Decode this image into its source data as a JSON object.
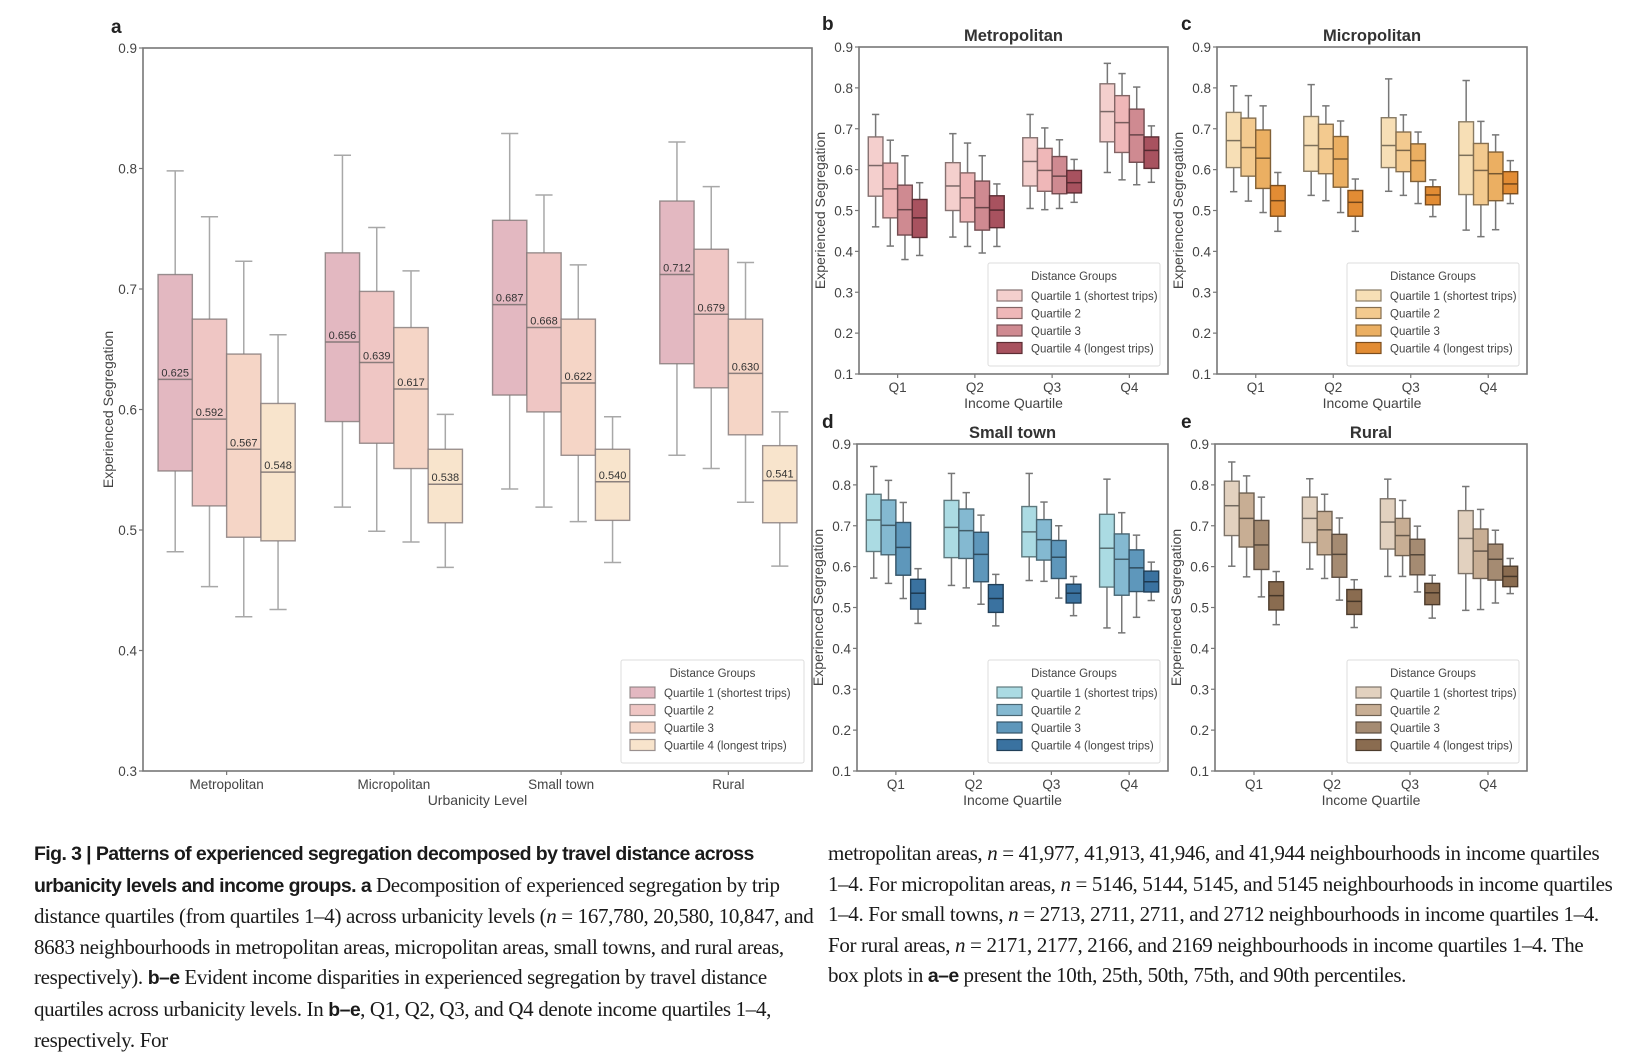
{
  "figure": {
    "label": "Fig. 3",
    "caption_title": "Patterns of experienced segregation decomposed by travel distance across urbanicity levels and income groups.",
    "caption_left_parts": [
      {
        "b": "a"
      },
      {
        "t": " Decomposition of experienced segregation by trip distance quartiles (from quartiles 1–4) across urbanicity levels ("
      },
      {
        "i": "n"
      },
      {
        "t": " = 167,780, 20,580, 10,847, and 8683 neighbourhoods in metropolitan areas, micropolitan areas, small towns, and rural areas, respectively). "
      },
      {
        "b": "b–e"
      },
      {
        "t": " Evident income disparities in experienced segregation by travel distance quartiles across urbanicity levels. In "
      },
      {
        "b": "b–e"
      },
      {
        "t": ", Q1, Q2, Q3, and Q4 denote income quartiles 1–4, respectively. For"
      }
    ],
    "caption_right_parts": [
      {
        "t": "metropolitan areas, "
      },
      {
        "i": "n"
      },
      {
        "t": " = 41,977, 41,913, 41,946, and 41,944 neighbourhoods in income quartiles 1–4. For micropolitan areas, "
      },
      {
        "i": "n"
      },
      {
        "t": " = 5146, 5144, 5145, and 5145 neighbourhoods in income quartiles 1–4. For small towns, "
      },
      {
        "i": "n"
      },
      {
        "t": " = 2713, 2711, 2711, and 2712 neighbourhoods in income quartiles 1–4. For rural areas, "
      },
      {
        "i": "n"
      },
      {
        "t": " = 2171, 2177, 2166, and 2169 neighbourhoods in income quartiles 1–4. The box plots in "
      },
      {
        "b": "a–e"
      },
      {
        "t": " present the 10th, 25th, 50th, 75th, and 90th percentiles."
      }
    ]
  },
  "chart_data": [
    {
      "panel": "a",
      "type": "box",
      "title": "",
      "xlabel": "Urbanicity Level",
      "ylabel": "Experienced Segregation",
      "ylim": [
        0.3,
        0.9
      ],
      "yticks": [
        "0.3",
        "0.4",
        "0.5",
        "0.6",
        "0.7",
        "0.8",
        "0.9"
      ],
      "categories": [
        "Metropolitan",
        "Micropolitan",
        "Small town",
        "Rural"
      ],
      "legend": {
        "title": "Distance Groups",
        "position": "lower-right"
      },
      "show_median_labels": true,
      "series": [
        {
          "name": "Quartile 1 (shortest trips)",
          "color": "#e3b8c1",
          "p10": [
            0.482,
            0.519,
            0.534,
            0.562
          ],
          "p25": [
            0.549,
            0.59,
            0.612,
            0.638
          ],
          "p50": [
            0.625,
            0.656,
            0.687,
            0.712
          ],
          "p75": [
            0.712,
            0.73,
            0.757,
            0.773
          ],
          "p90": [
            0.798,
            0.811,
            0.829,
            0.822
          ]
        },
        {
          "name": "Quartile 2",
          "color": "#efc6c4",
          "p10": [
            0.453,
            0.499,
            0.519,
            0.551
          ],
          "p25": [
            0.52,
            0.572,
            0.598,
            0.618
          ],
          "p50": [
            0.592,
            0.639,
            0.668,
            0.679
          ],
          "p75": [
            0.675,
            0.698,
            0.73,
            0.733
          ],
          "p90": [
            0.76,
            0.751,
            0.778,
            0.785
          ]
        },
        {
          "name": "Quartile 3",
          "color": "#f5d5c6",
          "p10": [
            0.428,
            0.49,
            0.507,
            0.523
          ],
          "p25": [
            0.494,
            0.551,
            0.562,
            0.579
          ],
          "p50": [
            0.567,
            0.617,
            0.622,
            0.63
          ],
          "p75": [
            0.646,
            0.668,
            0.675,
            0.675
          ],
          "p90": [
            0.723,
            0.715,
            0.72,
            0.722
          ]
        },
        {
          "name": "Quartile 4 (longest trips)",
          "color": "#f8e4cc",
          "p10": [
            0.434,
            0.469,
            0.473,
            0.47
          ],
          "p25": [
            0.491,
            0.506,
            0.508,
            0.506
          ],
          "p50": [
            0.548,
            0.538,
            0.54,
            0.541
          ],
          "p75": [
            0.605,
            0.567,
            0.567,
            0.57
          ],
          "p90": [
            0.662,
            0.596,
            0.594,
            0.598
          ]
        }
      ]
    },
    {
      "panel": "b",
      "type": "box",
      "title": "Metropolitan",
      "xlabel": "Income Quartile",
      "ylabel": "Experienced Segregation",
      "ylim": [
        0.1,
        0.9
      ],
      "yticks": [
        "0.1",
        "0.2",
        "0.3",
        "0.4",
        "0.5",
        "0.6",
        "0.7",
        "0.8",
        "0.9"
      ],
      "categories": [
        "Q1",
        "Q2",
        "Q3",
        "Q4"
      ],
      "legend": {
        "title": "Distance Groups",
        "position": "lower-right"
      },
      "series": [
        {
          "name": "Quartile 1 (shortest trips)",
          "color": "#f4cfcd",
          "p10": [
            0.46,
            0.435,
            0.505,
            0.593
          ],
          "p25": [
            0.535,
            0.5,
            0.56,
            0.668
          ],
          "p50": [
            0.61,
            0.56,
            0.62,
            0.742
          ],
          "p75": [
            0.68,
            0.617,
            0.678,
            0.81
          ],
          "p90": [
            0.735,
            0.688,
            0.735,
            0.86
          ]
        },
        {
          "name": "Quartile 2",
          "color": "#efb7b8",
          "p10": [
            0.413,
            0.412,
            0.502,
            0.575
          ],
          "p25": [
            0.482,
            0.472,
            0.547,
            0.642
          ],
          "p50": [
            0.553,
            0.531,
            0.598,
            0.715
          ],
          "p75": [
            0.616,
            0.592,
            0.652,
            0.781
          ],
          "p90": [
            0.672,
            0.665,
            0.702,
            0.835
          ]
        },
        {
          "name": "Quartile 3",
          "color": "#cf8a91",
          "p10": [
            0.38,
            0.396,
            0.505,
            0.563
          ],
          "p25": [
            0.44,
            0.452,
            0.541,
            0.618
          ],
          "p50": [
            0.502,
            0.507,
            0.584,
            0.685
          ],
          "p75": [
            0.562,
            0.572,
            0.632,
            0.748
          ],
          "p90": [
            0.634,
            0.634,
            0.673,
            0.802
          ]
        },
        {
          "name": "Quartile 4 (longest trips)",
          "color": "#a8525f",
          "p10": [
            0.39,
            0.412,
            0.52,
            0.569
          ],
          "p25": [
            0.434,
            0.458,
            0.543,
            0.603
          ],
          "p50": [
            0.482,
            0.501,
            0.568,
            0.647
          ],
          "p75": [
            0.527,
            0.536,
            0.598,
            0.68
          ],
          "p90": [
            0.568,
            0.565,
            0.625,
            0.707
          ]
        }
      ]
    },
    {
      "panel": "c",
      "type": "box",
      "title": "Micropolitan",
      "xlabel": "Income Quartile",
      "ylabel": "Experienced Segregation",
      "ylim": [
        0.1,
        0.9
      ],
      "yticks": [
        "0.1",
        "0.2",
        "0.3",
        "0.4",
        "0.5",
        "0.6",
        "0.7",
        "0.8",
        "0.9"
      ],
      "categories": [
        "Q1",
        "Q2",
        "Q3",
        "Q4"
      ],
      "legend": {
        "title": "Distance Groups",
        "position": "lower-right"
      },
      "series": [
        {
          "name": "Quartile 1 (shortest trips)",
          "color": "#f7dfb6",
          "p10": [
            0.546,
            0.537,
            0.547,
            0.452
          ],
          "p25": [
            0.605,
            0.596,
            0.605,
            0.539
          ],
          "p50": [
            0.671,
            0.659,
            0.659,
            0.635
          ],
          "p75": [
            0.74,
            0.73,
            0.727,
            0.717
          ],
          "p90": [
            0.805,
            0.808,
            0.822,
            0.818
          ]
        },
        {
          "name": "Quartile 2",
          "color": "#f3ca8f",
          "p10": [
            0.523,
            0.524,
            0.537,
            0.436
          ],
          "p25": [
            0.584,
            0.59,
            0.595,
            0.514
          ],
          "p50": [
            0.654,
            0.651,
            0.647,
            0.598
          ],
          "p75": [
            0.726,
            0.711,
            0.692,
            0.664
          ],
          "p90": [
            0.781,
            0.756,
            0.734,
            0.718
          ]
        },
        {
          "name": "Quartile 3",
          "color": "#ebaf62",
          "p10": [
            0.495,
            0.495,
            0.517,
            0.453
          ],
          "p25": [
            0.554,
            0.557,
            0.571,
            0.524
          ],
          "p50": [
            0.628,
            0.626,
            0.622,
            0.59
          ],
          "p75": [
            0.697,
            0.681,
            0.663,
            0.643
          ],
          "p90": [
            0.756,
            0.719,
            0.692,
            0.685
          ]
        },
        {
          "name": "Quartile 4 (longest trips)",
          "color": "#e28c34",
          "p10": [
            0.449,
            0.449,
            0.485,
            0.517
          ],
          "p25": [
            0.486,
            0.486,
            0.514,
            0.541
          ],
          "p50": [
            0.524,
            0.52,
            0.538,
            0.565
          ],
          "p75": [
            0.561,
            0.549,
            0.558,
            0.595
          ],
          "p90": [
            0.593,
            0.577,
            0.575,
            0.622
          ]
        }
      ]
    },
    {
      "panel": "d",
      "type": "box",
      "title": "Small town",
      "xlabel": "Income Quartile",
      "ylabel": "Experienced Segregation",
      "ylim": [
        0.1,
        0.9
      ],
      "yticks": [
        "0.1",
        "0.2",
        "0.3",
        "0.4",
        "0.5",
        "0.6",
        "0.7",
        "0.8",
        "0.9"
      ],
      "categories": [
        "Q1",
        "Q2",
        "Q3",
        "Q4"
      ],
      "legend": {
        "title": "Distance Groups",
        "position": "lower-right"
      },
      "series": [
        {
          "name": "Quartile 1 (shortest trips)",
          "color": "#abdbe3",
          "p10": [
            0.572,
            0.554,
            0.566,
            0.45
          ],
          "p25": [
            0.637,
            0.622,
            0.624,
            0.55
          ],
          "p50": [
            0.714,
            0.696,
            0.685,
            0.645
          ],
          "p75": [
            0.777,
            0.762,
            0.747,
            0.728
          ],
          "p90": [
            0.845,
            0.828,
            0.828,
            0.814
          ]
        },
        {
          "name": "Quartile 2",
          "color": "#84b9d1",
          "p10": [
            0.559,
            0.548,
            0.564,
            0.438
          ],
          "p25": [
            0.629,
            0.62,
            0.616,
            0.53
          ],
          "p50": [
            0.701,
            0.688,
            0.666,
            0.618
          ],
          "p75": [
            0.763,
            0.741,
            0.715,
            0.68
          ],
          "p90": [
            0.811,
            0.781,
            0.758,
            0.732
          ]
        },
        {
          "name": "Quartile 3",
          "color": "#5e97bb",
          "p10": [
            0.522,
            0.508,
            0.523,
            0.476
          ],
          "p25": [
            0.579,
            0.563,
            0.571,
            0.539
          ],
          "p50": [
            0.647,
            0.63,
            0.623,
            0.597
          ],
          "p75": [
            0.708,
            0.684,
            0.664,
            0.641
          ],
          "p90": [
            0.757,
            0.726,
            0.7,
            0.677
          ]
        },
        {
          "name": "Quartile 4 (longest trips)",
          "color": "#3a72a0",
          "p10": [
            0.461,
            0.455,
            0.48,
            0.517
          ],
          "p25": [
            0.496,
            0.488,
            0.511,
            0.538
          ],
          "p50": [
            0.535,
            0.522,
            0.535,
            0.563
          ],
          "p75": [
            0.569,
            0.556,
            0.557,
            0.589
          ],
          "p90": [
            0.595,
            0.581,
            0.576,
            0.611
          ]
        }
      ]
    },
    {
      "panel": "e",
      "type": "box",
      "title": "Rural",
      "xlabel": "Income Quartile",
      "ylabel": "Experienced Segregation",
      "ylim": [
        0.1,
        0.9
      ],
      "yticks": [
        "0.1",
        "0.2",
        "0.3",
        "0.4",
        "0.5",
        "0.6",
        "0.7",
        "0.8",
        "0.9"
      ],
      "categories": [
        "Q1",
        "Q2",
        "Q3",
        "Q4"
      ],
      "legend": {
        "title": "Distance Groups",
        "position": "lower-right"
      },
      "series": [
        {
          "name": "Quartile 1 (shortest trips)",
          "color": "#e2d1bf",
          "p10": [
            0.601,
            0.594,
            0.576,
            0.493
          ],
          "p25": [
            0.676,
            0.659,
            0.643,
            0.583
          ],
          "p50": [
            0.749,
            0.718,
            0.709,
            0.669
          ],
          "p75": [
            0.809,
            0.77,
            0.766,
            0.737
          ],
          "p90": [
            0.856,
            0.815,
            0.814,
            0.796
          ]
        },
        {
          "name": "Quartile 2",
          "color": "#c8ae94",
          "p10": [
            0.575,
            0.571,
            0.576,
            0.495
          ],
          "p25": [
            0.648,
            0.629,
            0.627,
            0.571
          ],
          "p50": [
            0.718,
            0.69,
            0.676,
            0.638
          ],
          "p75": [
            0.78,
            0.735,
            0.718,
            0.692
          ],
          "p90": [
            0.822,
            0.777,
            0.762,
            0.74
          ]
        },
        {
          "name": "Quartile 3",
          "color": "#a58b72",
          "p10": [
            0.526,
            0.518,
            0.538,
            0.511
          ],
          "p25": [
            0.593,
            0.574,
            0.58,
            0.567
          ],
          "p50": [
            0.653,
            0.63,
            0.629,
            0.618
          ],
          "p75": [
            0.713,
            0.679,
            0.667,
            0.655
          ],
          "p90": [
            0.77,
            0.719,
            0.699,
            0.689
          ]
        },
        {
          "name": "Quartile 4 (longest trips)",
          "color": "#8a6c50",
          "p10": [
            0.458,
            0.451,
            0.474,
            0.534
          ],
          "p25": [
            0.494,
            0.483,
            0.507,
            0.551
          ],
          "p50": [
            0.529,
            0.515,
            0.536,
            0.576
          ],
          "p75": [
            0.563,
            0.544,
            0.559,
            0.601
          ],
          "p90": [
            0.588,
            0.568,
            0.579,
            0.62
          ]
        }
      ]
    }
  ]
}
